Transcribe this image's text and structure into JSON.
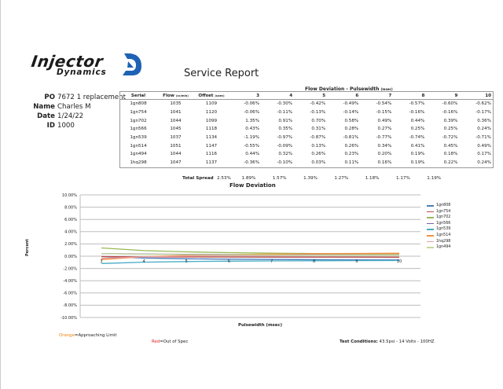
{
  "header": {
    "logo_word1": "Injector",
    "logo_word2": "Dynamics",
    "title": "Service Report"
  },
  "info": {
    "po_label": "PO",
    "po_value": "7672 1 replacement",
    "name_label": "Name",
    "name_value": "Charles M",
    "date_label": "Date",
    "date_value": "1/24/22",
    "id_label": "ID",
    "id_value": "1000"
  },
  "table": {
    "group_header": "Flow Deviation - Pulsewidth",
    "group_header_unit": "(msec)",
    "columns": {
      "serial": "Serial",
      "flow": "Flow",
      "flow_unit": "(cc/min)",
      "offset": "Offset",
      "offset_unit": "(usec)",
      "pw": [
        "3",
        "4",
        "5",
        "6",
        "7",
        "8",
        "9",
        "10"
      ]
    },
    "rows": [
      {
        "serial": "1gn808",
        "flow": "1035",
        "offset": "1109",
        "vals": [
          "-0.06%",
          "-0.30%",
          "-0.42%",
          "-0.49%",
          "-0.54%",
          "-0.57%",
          "-0.60%",
          "-0.62%"
        ]
      },
      {
        "serial": "1gn754",
        "flow": "1041",
        "offset": "1120",
        "vals": [
          "-0.06%",
          "-0.11%",
          "-0.13%",
          "-0.14%",
          "-0.15%",
          "-0.16%",
          "-0.16%",
          "-0.17%"
        ]
      },
      {
        "serial": "1gn702",
        "flow": "1044",
        "offset": "1099",
        "vals": [
          "1.35%",
          "0.91%",
          "0.70%",
          "0.58%",
          "0.49%",
          "0.44%",
          "0.39%",
          "0.36%"
        ]
      },
      {
        "serial": "1gn566",
        "flow": "1045",
        "offset": "1118",
        "vals": [
          "0.43%",
          "0.35%",
          "0.31%",
          "0.28%",
          "0.27%",
          "0.25%",
          "0.25%",
          "0.24%"
        ]
      },
      {
        "serial": "1gn539",
        "flow": "1037",
        "offset": "1134",
        "vals": [
          "-1.19%",
          "-0.97%",
          "-0.87%",
          "-0.81%",
          "-0.77%",
          "-0.74%",
          "-0.72%",
          "-0.71%"
        ]
      },
      {
        "serial": "1gn514",
        "flow": "1051",
        "offset": "1147",
        "vals": [
          "-0.55%",
          "-0.09%",
          "0.13%",
          "0.26%",
          "0.34%",
          "0.41%",
          "0.45%",
          "0.49%"
        ]
      },
      {
        "serial": "1gn494",
        "flow": "1044",
        "offset": "1116",
        "vals": [
          "0.44%",
          "0.32%",
          "0.26%",
          "0.23%",
          "0.20%",
          "0.19%",
          "0.18%",
          "0.17%"
        ]
      },
      {
        "serial": "1hq298",
        "flow": "1047",
        "offset": "1137",
        "vals": [
          "-0.36%",
          "-0.10%",
          "0.03%",
          "0.11%",
          "0.16%",
          "0.19%",
          "0.22%",
          "0.24%"
        ]
      }
    ],
    "total_label": "Total Spread",
    "total_vals": [
      "2.53%",
      "1.89%",
      "1.57%",
      "1.39%",
      "1.27%",
      "1.18%",
      "1.17%",
      "1.19%"
    ]
  },
  "chart_data": {
    "type": "line",
    "title": "Flow Deviation",
    "xlabel": "Pulsewidth (msec)",
    "ylabel": "Percent",
    "x": [
      3,
      4,
      5,
      6,
      7,
      8,
      9,
      10
    ],
    "ylim": [
      -10,
      10
    ],
    "yticks": [
      "10.00%",
      "8.00%",
      "6.00%",
      "4.00%",
      "2.00%",
      "0.00%",
      "-2.00%",
      "-4.00%",
      "-6.00%",
      "-8.00%",
      "-10.00%"
    ],
    "grid": true,
    "legend_position": "right",
    "series": [
      {
        "name": "1gn808",
        "color": "#4a7ebb",
        "values": [
          -0.06,
          -0.3,
          -0.42,
          -0.49,
          -0.54,
          -0.57,
          -0.6,
          -0.62
        ]
      },
      {
        "name": "1gn754",
        "color": "#be4b48",
        "values": [
          -0.06,
          -0.11,
          -0.13,
          -0.14,
          -0.15,
          -0.16,
          -0.16,
          -0.17
        ]
      },
      {
        "name": "1gn702",
        "color": "#98b954",
        "values": [
          1.35,
          0.91,
          0.7,
          0.58,
          0.49,
          0.44,
          0.39,
          0.36
        ]
      },
      {
        "name": "1gn566",
        "color": "#7d60a0",
        "values": [
          0.43,
          0.35,
          0.31,
          0.28,
          0.27,
          0.25,
          0.25,
          0.24
        ]
      },
      {
        "name": "1gn539",
        "color": "#46aac5",
        "values": [
          -1.19,
          -0.97,
          -0.87,
          -0.81,
          -0.77,
          -0.74,
          -0.72,
          -0.71
        ]
      },
      {
        "name": "1gn514",
        "color": "#f69240",
        "values": [
          -0.55,
          -0.09,
          0.13,
          0.26,
          0.34,
          0.41,
          0.45,
          0.49
        ]
      },
      {
        "name": "1hq298",
        "color": "#e8a0a0",
        "values": [
          -0.36,
          -0.1,
          0.03,
          0.11,
          0.16,
          0.19,
          0.22,
          0.24
        ]
      },
      {
        "name": "1gn494",
        "color": "#c4d79b",
        "values": [
          0.44,
          0.32,
          0.26,
          0.23,
          0.2,
          0.19,
          0.18,
          0.17
        ]
      }
    ]
  },
  "footer": {
    "orange_word": "Orange",
    "orange_text": "=Approaching Limit",
    "red_word": "Red",
    "red_text": "=Out of Spec",
    "test_label": "Test Conditions:",
    "test_value": "43.5psi - 14 Volts - 100HZ",
    "orange_color": "#f07f09",
    "red_color": "#e02020"
  }
}
